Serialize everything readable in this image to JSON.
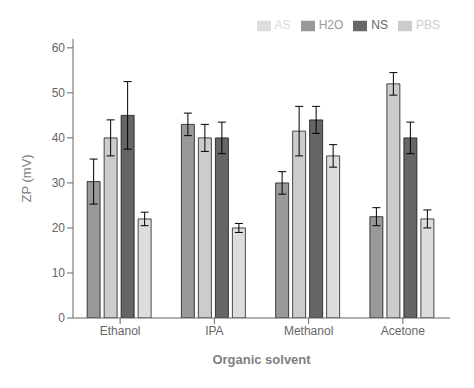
{
  "chart_data": {
    "type": "bar",
    "categories": [
      "Ethanol",
      "IPA",
      "Methanol",
      "Acetone"
    ],
    "series": [
      {
        "name": "H2O",
        "color": "#999999",
        "values": [
          30.3,
          43.0,
          30.0,
          22.5
        ],
        "errors": [
          5.0,
          2.5,
          2.5,
          2.0
        ]
      },
      {
        "name": "PBS",
        "color": "#cccccc",
        "values": [
          40.0,
          40.0,
          41.5,
          52.0
        ],
        "errors": [
          4.0,
          3.0,
          5.5,
          2.5
        ]
      },
      {
        "name": "NS",
        "color": "#666666",
        "values": [
          45.0,
          40.0,
          44.0,
          40.0
        ],
        "errors": [
          7.5,
          3.5,
          3.0,
          3.5
        ]
      },
      {
        "name": "AS",
        "color": "#dddddd",
        "values": [
          22.0,
          20.0,
          36.0,
          22.0
        ],
        "errors": [
          1.5,
          1.0,
          2.5,
          2.0
        ]
      }
    ],
    "xlabel": "Organic solvent",
    "ylabel": "ZP (mV)",
    "ylim": [
      0,
      62
    ],
    "yticks": [
      0,
      10,
      20,
      30,
      40,
      50,
      60
    ],
    "grid": false,
    "legend": "upper right"
  }
}
